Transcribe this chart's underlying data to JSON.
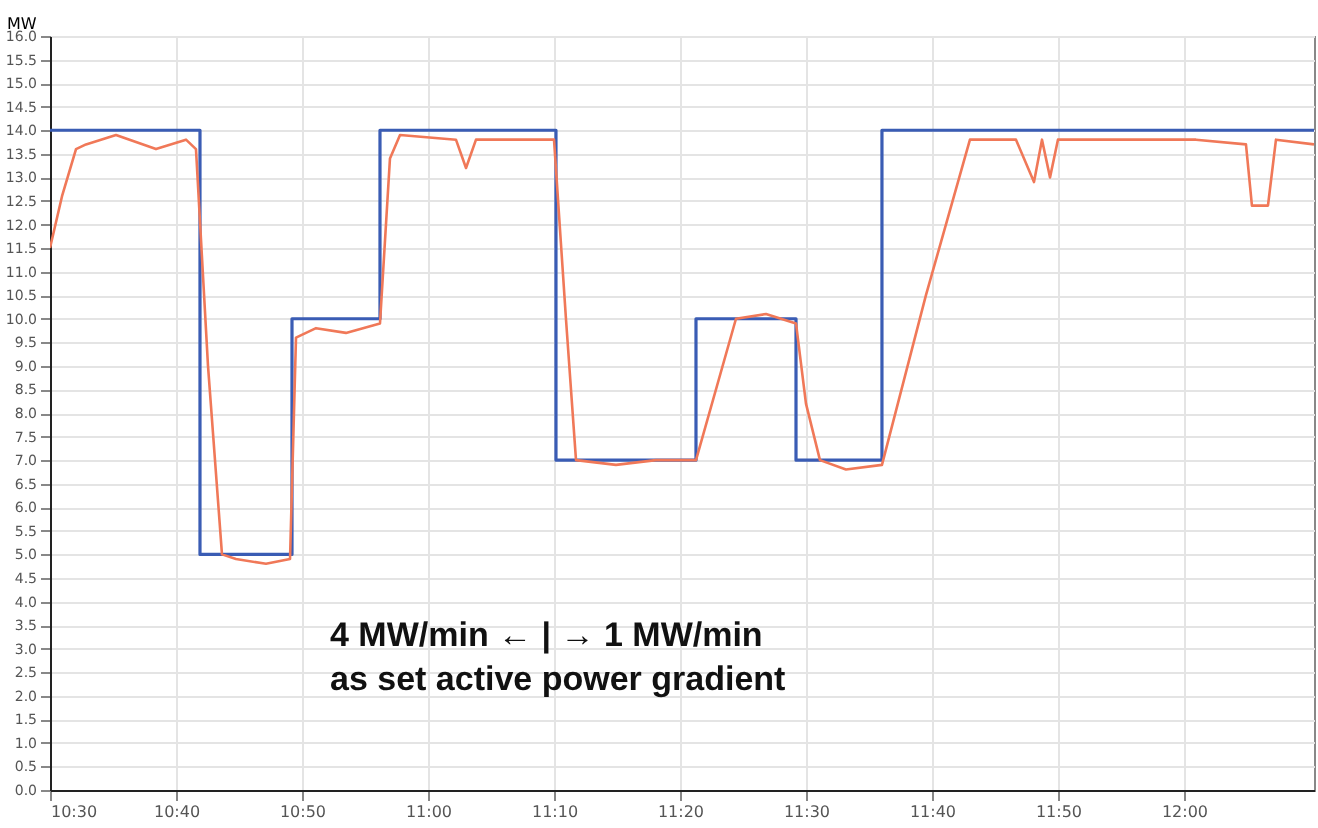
{
  "chart_data": {
    "type": "line",
    "ylabel": "MW",
    "annotations": [
      "4 MW/min ← | → 1 MW/min",
      "as set active power gradient"
    ],
    "xlim": [
      10.5,
      12.172
    ],
    "xticks": [
      {
        "value": 10.5,
        "label": "10:30"
      },
      {
        "value": 10.6667,
        "label": "10:40"
      },
      {
        "value": 10.8333,
        "label": "10:50"
      },
      {
        "value": 11,
        "label": "11:00"
      },
      {
        "value": 11.1667,
        "label": "11:10"
      },
      {
        "value": 11.3333,
        "label": "11:20"
      },
      {
        "value": 11.5,
        "label": "11:30"
      },
      {
        "value": 11.6667,
        "label": "11:40"
      },
      {
        "value": 11.8333,
        "label": "11:50"
      },
      {
        "value": 12,
        "label": "12:00"
      }
    ],
    "ylim": [
      0,
      16
    ],
    "yticks": [
      {
        "value": 0,
        "label": "0.0"
      },
      {
        "value": 0.5,
        "label": "0.5"
      },
      {
        "value": 1,
        "label": "1.0"
      },
      {
        "value": 1.5,
        "label": "1.5"
      },
      {
        "value": 2,
        "label": "2.0"
      },
      {
        "value": 2.5,
        "label": "2.5"
      },
      {
        "value": 3,
        "label": "3.0"
      },
      {
        "value": 3.5,
        "label": "3.5"
      },
      {
        "value": 4,
        "label": "4.0"
      },
      {
        "value": 4.5,
        "label": "4.5"
      },
      {
        "value": 5,
        "label": "5.0"
      },
      {
        "value": 5.5,
        "label": "5.5"
      },
      {
        "value": 6,
        "label": "6.0"
      },
      {
        "value": 6.5,
        "label": "6.5"
      },
      {
        "value": 7,
        "label": "7.0"
      },
      {
        "value": 7.5,
        "label": "7.5"
      },
      {
        "value": 8,
        "label": "8.0"
      },
      {
        "value": 8.5,
        "label": "8.5"
      },
      {
        "value": 9,
        "label": "9.0"
      },
      {
        "value": 9.5,
        "label": "9.5"
      },
      {
        "value": 10,
        "label": "10.0"
      },
      {
        "value": 10.5,
        "label": "10.5"
      },
      {
        "value": 11,
        "label": "11.0"
      },
      {
        "value": 11.5,
        "label": "11.5"
      },
      {
        "value": 12,
        "label": "12.0"
      },
      {
        "value": 12.5,
        "label": "12.5"
      },
      {
        "value": 13,
        "label": "13.0"
      },
      {
        "value": 13.5,
        "label": "13.5"
      },
      {
        "value": 14,
        "label": "14.0"
      },
      {
        "value": 14.5,
        "label": "14.5"
      },
      {
        "value": 15,
        "label": "15.0"
      },
      {
        "value": 15.5,
        "label": "15.5"
      },
      {
        "value": 16,
        "label": "16.0"
      }
    ],
    "grid": true,
    "series": [
      {
        "type": "step",
        "color": "#3a5cb4",
        "x": [
          10.5,
          10.6984,
          10.8201,
          10.9365,
          11.1693,
          11.3545,
          11.4868,
          11.6005,
          12.172
        ],
        "values": [
          14,
          5,
          10,
          14,
          7,
          10,
          7,
          14,
          14
        ]
      },
      {
        "type": "line",
        "color": "#f07858",
        "x": [
          10.5,
          10.5159,
          10.5344,
          10.5476,
          10.5873,
          10.6402,
          10.6799,
          10.6931,
          10.709,
          10.7275,
          10.746,
          10.7857,
          10.8175,
          10.8254,
          10.8519,
          10.8915,
          10.9365,
          10.9497,
          10.963,
          11.037,
          11.0503,
          11.0635,
          11.1667,
          11.1825,
          11.1958,
          11.2487,
          11.3016,
          11.3545,
          11.4074,
          11.4471,
          11.4868,
          11.5,
          11.5185,
          11.5529,
          11.6005,
          11.6587,
          11.7169,
          11.7778,
          11.8016,
          11.8122,
          11.8228,
          11.8333,
          11.9101,
          12.0159,
          12.082,
          12.0899,
          12.1111,
          12.1217,
          12.172
        ],
        "values": [
          11.5,
          12.6,
          13.6,
          13.7,
          13.9,
          13.6,
          13.8,
          13.6,
          9.0,
          5.0,
          4.9,
          4.8,
          4.9,
          9.6,
          9.8,
          9.7,
          9.9,
          13.4,
          13.9,
          13.8,
          13.2,
          13.8,
          13.8,
          10.0,
          7.0,
          6.9,
          7.0,
          7.0,
          10.0,
          10.1,
          9.9,
          8.2,
          7.0,
          6.8,
          6.9,
          10.5,
          13.8,
          13.8,
          12.9,
          13.8,
          13.0,
          13.8,
          13.8,
          13.8,
          13.7,
          12.4,
          12.4,
          13.8,
          13.7
        ]
      }
    ]
  }
}
